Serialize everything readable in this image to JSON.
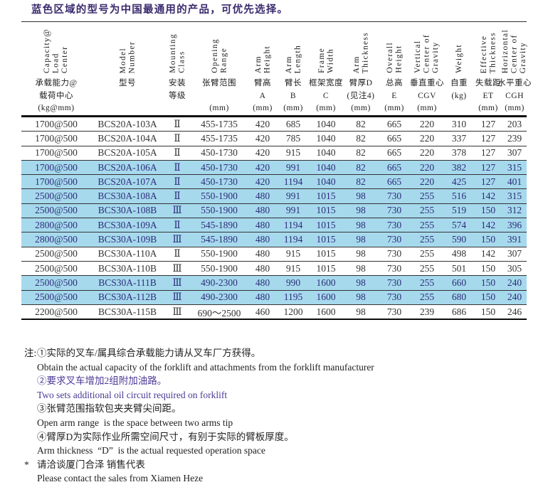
{
  "title": "蓝色区域的型号为中国最通用的产品，可优先选择。",
  "colors": {
    "highlight_row_bg": "#a7d9ed",
    "highlight_text": "#2b2d78",
    "title_color": "#3b2b6e",
    "note_purple": "#4b3995"
  },
  "table": {
    "columns": [
      {
        "en": [
          "Capacity@",
          "Load",
          "Center"
        ],
        "cn": [
          "承载能力@",
          "载荷中心",
          "(kg@mm)"
        ]
      },
      {
        "en": [
          "Model",
          "Number"
        ],
        "cn": [
          "型号",
          "",
          ""
        ]
      },
      {
        "en": [
          "Mounting",
          "Class"
        ],
        "cn": [
          "安装",
          "等级",
          ""
        ]
      },
      {
        "en": [
          "Opening",
          "Range"
        ],
        "cn": [
          "张臂范围",
          "",
          "(mm)"
        ]
      },
      {
        "en": [
          "Arm",
          "Height"
        ],
        "cn": [
          "臂高",
          "A",
          "(mm)"
        ]
      },
      {
        "en": [
          "Arm",
          "Length"
        ],
        "cn": [
          "臂长",
          "B",
          "(mm)"
        ]
      },
      {
        "en": [
          "Frame",
          "Width"
        ],
        "cn": [
          "框架宽度",
          "C",
          "(mm)"
        ]
      },
      {
        "en": [
          "Arm",
          "Thickness"
        ],
        "cn": [
          "臂厚D",
          "(见注4)",
          "(mm)"
        ]
      },
      {
        "en": [
          "Overall",
          "Height"
        ],
        "cn": [
          "总高",
          "E",
          "(mm)"
        ]
      },
      {
        "en": [
          "Vertical",
          "Center of",
          "Gravity"
        ],
        "cn": [
          "垂直重心",
          "CGV",
          "(mm)"
        ]
      },
      {
        "en": [
          "Weight"
        ],
        "cn": [
          "自重",
          "(kg)",
          ""
        ]
      },
      {
        "en": [
          "Effective",
          "Thickness"
        ],
        "cn": [
          "失载距",
          "ET",
          "(mm)"
        ]
      },
      {
        "en": [
          "Horizontal",
          "Center of",
          "Gravity"
        ],
        "cn": [
          "水平重心",
          "CGH",
          "(mm)"
        ]
      }
    ],
    "rows": [
      {
        "highlight": false,
        "cells": [
          "1700@500",
          "BCS20A-103A",
          "Ⅱ",
          "455-1735",
          "420",
          "685",
          "1040",
          "82",
          "665",
          "220",
          "310",
          "127",
          "203"
        ]
      },
      {
        "highlight": false,
        "cells": [
          "1700@500",
          "BCS20A-104A",
          "Ⅱ",
          "455-1735",
          "420",
          "785",
          "1040",
          "82",
          "665",
          "220",
          "337",
          "127",
          "239"
        ]
      },
      {
        "highlight": false,
        "cells": [
          "1700@500",
          "BCS20A-105A",
          "Ⅱ",
          "450-1730",
          "420",
          "915",
          "1040",
          "82",
          "665",
          "220",
          "378",
          "127",
          "307"
        ]
      },
      {
        "highlight": true,
        "cells": [
          "1700@500",
          "BCS20A-106A",
          "Ⅱ",
          "450-1730",
          "420",
          "991",
          "1040",
          "82",
          "665",
          "220",
          "382",
          "127",
          "315"
        ]
      },
      {
        "highlight": true,
        "cells": [
          "1700@500",
          "BCS20A-107A",
          "Ⅱ",
          "450-1730",
          "420",
          "1194",
          "1040",
          "82",
          "665",
          "220",
          "425",
          "127",
          "401"
        ]
      },
      {
        "highlight": true,
        "cells": [
          "2500@500",
          "BCS30A-108A",
          "Ⅱ",
          "550-1900",
          "480",
          "991",
          "1015",
          "98",
          "730",
          "255",
          "516",
          "142",
          "315"
        ]
      },
      {
        "highlight": true,
        "cells": [
          "2500@500",
          "BCS30A-108B",
          "Ⅲ",
          "550-1900",
          "480",
          "991",
          "1015",
          "98",
          "730",
          "255",
          "519",
          "150",
          "312"
        ]
      },
      {
        "highlight": true,
        "cells": [
          "2800@500",
          "BCS30A-109A",
          "Ⅱ",
          "545-1890",
          "480",
          "1194",
          "1015",
          "98",
          "730",
          "255",
          "574",
          "142",
          "396"
        ]
      },
      {
        "highlight": true,
        "cells": [
          "2800@500",
          "BCS30A-109B",
          "Ⅲ",
          "545-1890",
          "480",
          "1194",
          "1015",
          "98",
          "730",
          "255",
          "590",
          "150",
          "391"
        ]
      },
      {
        "highlight": false,
        "cells": [
          "2500@500",
          "BCS30A-110A",
          "Ⅱ",
          "550-1900",
          "480",
          "915",
          "1015",
          "98",
          "730",
          "255",
          "498",
          "142",
          "307"
        ]
      },
      {
        "highlight": false,
        "cells": [
          "2500@500",
          "BCS30A-110B",
          "Ⅲ",
          "550-1900",
          "480",
          "915",
          "1015",
          "98",
          "730",
          "255",
          "501",
          "150",
          "305"
        ]
      },
      {
        "highlight": true,
        "cells": [
          "2500@500",
          "BCS30A-111B",
          "Ⅲ",
          "490-2300",
          "480",
          "990",
          "1600",
          "98",
          "730",
          "255",
          "660",
          "150",
          "240"
        ]
      },
      {
        "highlight": true,
        "cells": [
          "2500@500",
          "BCS30A-112B",
          "Ⅲ",
          "490-2300",
          "480",
          "1195",
          "1600",
          "98",
          "730",
          "255",
          "680",
          "150",
          "240"
        ]
      },
      {
        "highlight": false,
        "cells": [
          "2200@500",
          "BCS30A-115B",
          "Ⅲ",
          "690～2500",
          "460",
          "1200",
          "1600",
          "98",
          "730",
          "239",
          "686",
          "150",
          "246"
        ]
      }
    ]
  },
  "notes": [
    {
      "marker": "注:",
      "purple": false,
      "text": "①实际的叉车/属具综合承载能力请从叉车厂方获得。"
    },
    {
      "marker": "",
      "purple": false,
      "text": "Obtain the actual capacity of the forklift and attachments from the forklift manufacturer"
    },
    {
      "marker": "",
      "purple": true,
      "text": "②要求叉车增加2组附加油路。"
    },
    {
      "marker": "",
      "purple": true,
      "text": "Two sets additional oil circuit required on forklift"
    },
    {
      "marker": "",
      "purple": false,
      "text": "③张臂范围指软包夹夹臂尖间距。"
    },
    {
      "marker": "",
      "purple": false,
      "text": "Open arm range  is the space between two arms tip"
    },
    {
      "marker": "",
      "purple": false,
      "text": "④臂厚D为实际作业所需空间尺寸，有别于实际的臂板厚度。"
    },
    {
      "marker": "",
      "purple": false,
      "text": "Arm thickness  “D”  is the actual requested operation space"
    },
    {
      "marker": "*",
      "purple": false,
      "text": "请洽谈厦门合泽 销售代表"
    },
    {
      "marker": "",
      "purple": false,
      "text": "Please contact the sales from Xiamen Heze"
    }
  ]
}
